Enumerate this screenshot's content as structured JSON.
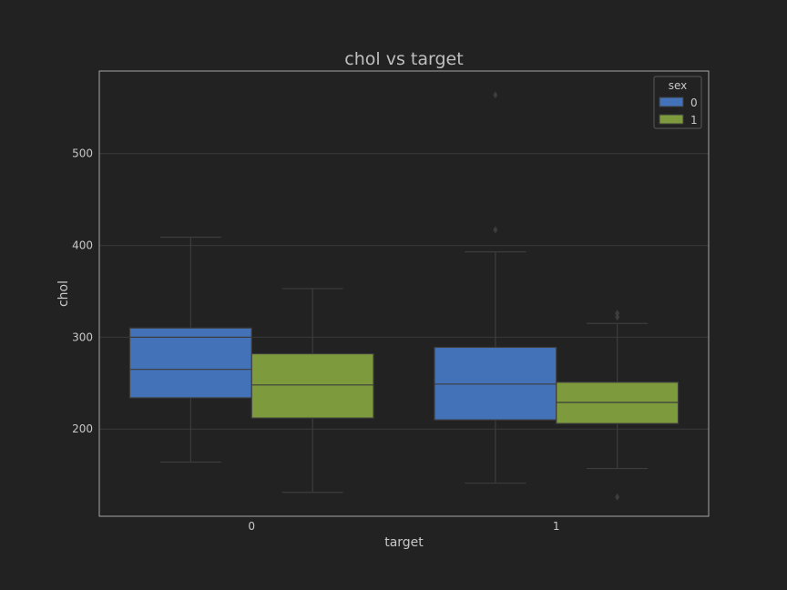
{
  "chart_data": {
    "type": "box",
    "title": "chol vs target",
    "xlabel": "target",
    "ylabel": "chol",
    "categories": [
      "0",
      "1"
    ],
    "ylim": [
      105,
      590
    ],
    "yticks": [
      200,
      300,
      400,
      500
    ],
    "grid": true,
    "legend": {
      "title": "sex",
      "placement": "top-right"
    },
    "series": [
      {
        "name": "0",
        "color": "#4472b8",
        "boxes": [
          {
            "whisker_low": 164,
            "q1": 234,
            "median": 265,
            "q3": 310,
            "whisker_high": 409,
            "outliers": []
          },
          {
            "whisker_low": 141,
            "q1": 210,
            "median": 249,
            "q3": 289,
            "whisker_high": 393,
            "outliers": [
              417,
              564
            ]
          }
        ]
      },
      {
        "name": "1",
        "color": "#7d9a3c",
        "boxes": [
          {
            "whisker_low": 131,
            "q1": 212,
            "median": 248,
            "q3": 282,
            "whisker_high": 353,
            "outliers": []
          },
          {
            "whisker_low": 157,
            "q1": 206,
            "median": 229,
            "q3": 251,
            "whisker_high": 315,
            "outliers": [
              126,
              322,
              326
            ]
          }
        ]
      }
    ],
    "annotations": [
      {
        "category": "0",
        "series": "0",
        "extra_line_value": 300
      }
    ]
  }
}
